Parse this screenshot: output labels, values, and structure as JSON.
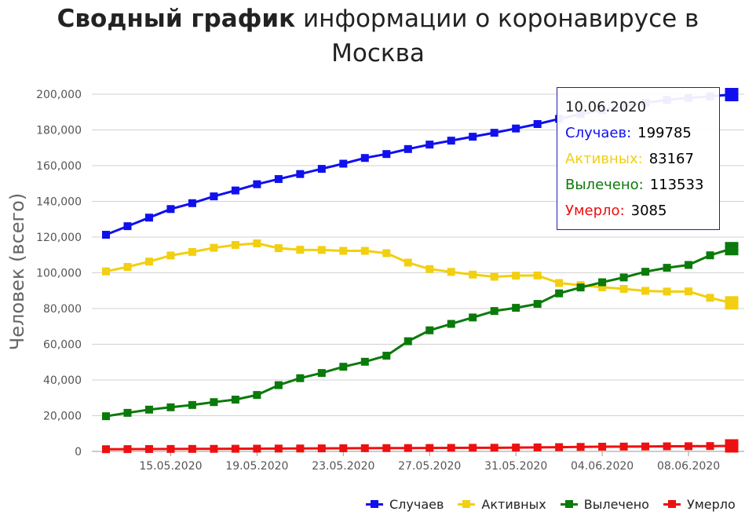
{
  "title": {
    "bold": "Сводный график",
    "rest_line1": " информации о коронавирусе в",
    "rest_line2": "Москва"
  },
  "tooltip": {
    "date": "10.06.2020",
    "rows": [
      {
        "label": "Случаев:",
        "value": "199785",
        "color": "#1010ee"
      },
      {
        "label": "Активных:",
        "value": "83167",
        "color": "#f2cf10"
      },
      {
        "label": "Вылечено:",
        "value": "113533",
        "color": "#0a7a0a"
      },
      {
        "label": "Умерло:",
        "value": "3085",
        "color": "#ee1010"
      }
    ]
  },
  "chart_data": {
    "type": "line",
    "ylabel": "Человек (всего)",
    "xlabel": "",
    "ylim": [
      0,
      200000
    ],
    "yticks": [
      "0",
      "20,000",
      "40,000",
      "60,000",
      "80,000",
      "100,000",
      "120,000",
      "140,000",
      "160,000",
      "180,000",
      "200,000"
    ],
    "ytick_values": [
      0,
      20000,
      40000,
      60000,
      80000,
      100000,
      120000,
      140000,
      160000,
      180000,
      200000
    ],
    "grid": true,
    "legend_position": "bottom-right",
    "x": [
      "12.05.2020",
      "13.05.2020",
      "14.05.2020",
      "15.05.2020",
      "16.05.2020",
      "17.05.2020",
      "18.05.2020",
      "19.05.2020",
      "20.05.2020",
      "21.05.2020",
      "22.05.2020",
      "23.05.2020",
      "24.05.2020",
      "25.05.2020",
      "26.05.2020",
      "27.05.2020",
      "28.05.2020",
      "29.05.2020",
      "30.05.2020",
      "31.05.2020",
      "01.06.2020",
      "02.06.2020",
      "03.06.2020",
      "04.06.2020",
      "05.06.2020",
      "06.06.2020",
      "07.06.2020",
      "08.06.2020",
      "09.06.2020",
      "10.06.2020"
    ],
    "xtick_labels": [
      "15.05.2020",
      "19.05.2020",
      "23.05.2020",
      "27.05.2020",
      "31.05.2020",
      "04.06.2020",
      "08.06.2020"
    ],
    "highlight_index": 29,
    "series": [
      {
        "name": "Случаев",
        "color": "#1010ee",
        "values": [
          121300,
          126100,
          130900,
          135700,
          139000,
          142800,
          146100,
          149600,
          152500,
          155300,
          158200,
          161100,
          164300,
          166500,
          169300,
          171800,
          174000,
          176200,
          178400,
          180800,
          183300,
          186200,
          188900,
          191100,
          193100,
          195200,
          196800,
          197900,
          198800,
          199785
        ]
      },
      {
        "name": "Активных",
        "color": "#f2cf10",
        "values": [
          100800,
          103300,
          106300,
          109700,
          111700,
          114000,
          115600,
          116500,
          113800,
          112900,
          112800,
          112300,
          112300,
          111000,
          105700,
          102100,
          100500,
          99000,
          97800,
          98400,
          98500,
          94300,
          93100,
          91900,
          91000,
          89900,
          89500,
          89600,
          86000,
          83167
        ]
      },
      {
        "name": "Вылечено",
        "color": "#0a7a0a",
        "values": [
          19700,
          21600,
          23400,
          24700,
          26000,
          27600,
          29000,
          31600,
          37100,
          41000,
          43900,
          47400,
          50200,
          53600,
          61700,
          67800,
          71400,
          75000,
          78600,
          80400,
          82600,
          88500,
          91800,
          94700,
          97400,
          100600,
          102800,
          104400,
          109800,
          113533
        ]
      },
      {
        "name": "Умерло",
        "color": "#ee1010",
        "values": [
          1232,
          1280,
          1337,
          1375,
          1404,
          1436,
          1490,
          1543,
          1592,
          1640,
          1701,
          1766,
          1801,
          1840,
          1881,
          1916,
          1967,
          2007,
          2043,
          2153,
          2242,
          2395,
          2520,
          2629,
          2703,
          2758,
          2843,
          2903,
          2998,
          3085
        ]
      }
    ]
  }
}
